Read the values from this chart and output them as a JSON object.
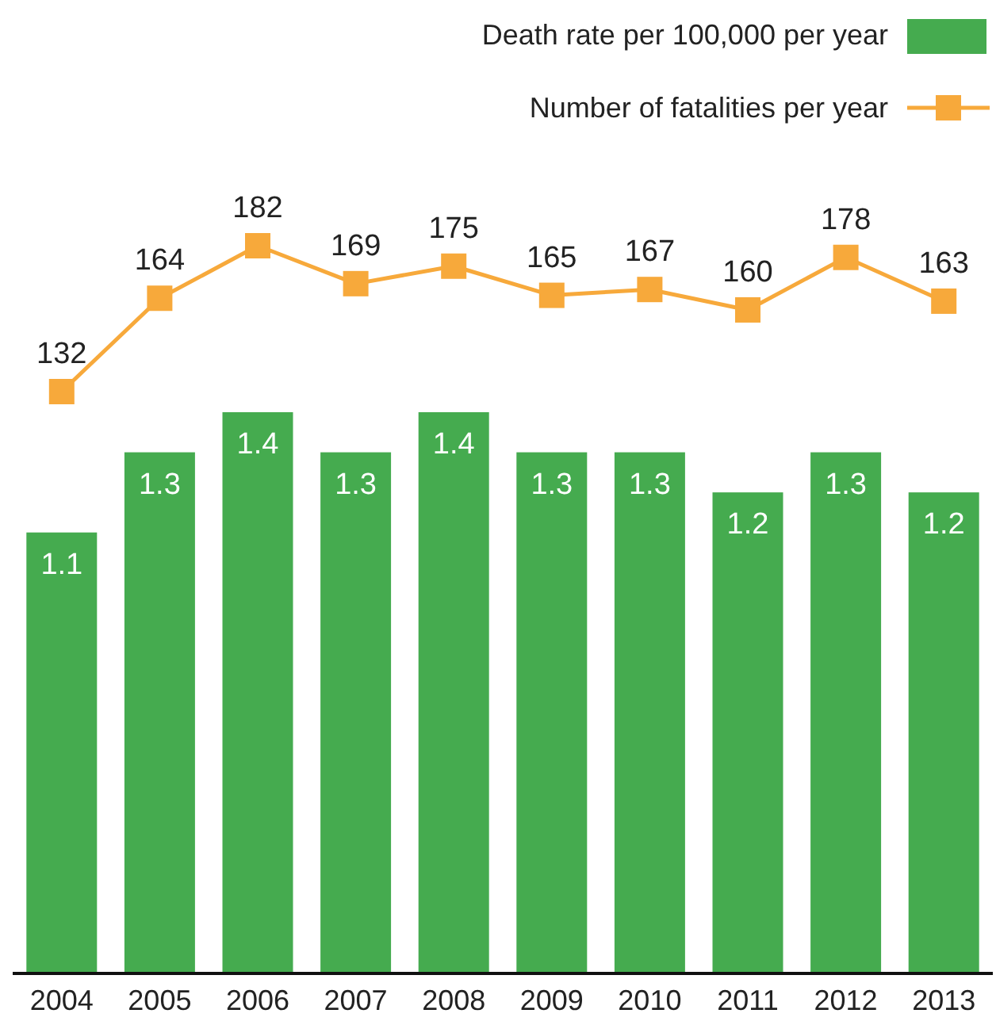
{
  "chart_data": [
    {
      "type": "bar",
      "categories": [
        "2004",
        "2005",
        "2006",
        "2007",
        "2008",
        "2009",
        "2010",
        "2011",
        "2012",
        "2013"
      ],
      "series": [
        {
          "name": "Death rate per 100,000 per year",
          "color": "#45ab4f",
          "values": [
            1.1,
            1.3,
            1.4,
            1.3,
            1.4,
            1.3,
            1.3,
            1.2,
            1.3,
            1.2
          ]
        }
      ],
      "data_labels": true,
      "legend": "top right",
      "tick_labels": "x"
    },
    {
      "type": "line",
      "categories": [
        "2004",
        "2005",
        "2006",
        "2007",
        "2008",
        "2009",
        "2010",
        "2011",
        "2012",
        "2013"
      ],
      "series": [
        {
          "name": "Number of fatalities per year",
          "color": "#f7a93b",
          "values": [
            132,
            164,
            182,
            169,
            175,
            165,
            167,
            160,
            178,
            163
          ]
        }
      ],
      "data_labels": true,
      "legend": "top right",
      "marker": "square",
      "tick_labels": false
    }
  ]
}
